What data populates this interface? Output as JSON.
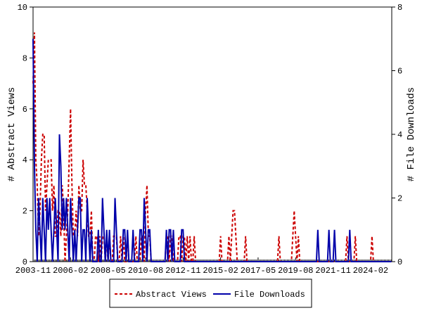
{
  "chart_data": {
    "type": "line",
    "y_label": "# Abstract Views",
    "y2_label": "# File Downloads",
    "categories": [
      "2003-11",
      null,
      null,
      null,
      null,
      null,
      null,
      null,
      null,
      null,
      null,
      null,
      null,
      null,
      null,
      null,
      null,
      null,
      null,
      null,
      null,
      null,
      null,
      null,
      null,
      null,
      null,
      "2006-02",
      null,
      null,
      null,
      null,
      null,
      null,
      null,
      null,
      null,
      null,
      null,
      null,
      null,
      null,
      null,
      null,
      null,
      null,
      null,
      null,
      null,
      null,
      null,
      null,
      null,
      null,
      "2008-05",
      null,
      null,
      null,
      null,
      null,
      null,
      null,
      null,
      null,
      null,
      null,
      null,
      null,
      null,
      null,
      null,
      null,
      null,
      null,
      null,
      null,
      null,
      null,
      null,
      null,
      null,
      "2010-08",
      null,
      null,
      null,
      null,
      null,
      null,
      null,
      null,
      null,
      null,
      null,
      null,
      null,
      null,
      null,
      null,
      null,
      null,
      null,
      null,
      null,
      null,
      null,
      null,
      null,
      null,
      "2012-11",
      null,
      null,
      null,
      null,
      null,
      null,
      null,
      null,
      null,
      null,
      null,
      null,
      null,
      null,
      null,
      null,
      null,
      null,
      null,
      null,
      null,
      null,
      null,
      null,
      null,
      null,
      "2015-02",
      null,
      null,
      null,
      null,
      null,
      null,
      null,
      null,
      null,
      null,
      null,
      null,
      null,
      null,
      null,
      null,
      null,
      null,
      null,
      null,
      null,
      null,
      null,
      null,
      null,
      null,
      "2017-05",
      null,
      null,
      null,
      null,
      null,
      null,
      null,
      null,
      null,
      null,
      null,
      null,
      null,
      null,
      null,
      null,
      null,
      null,
      null,
      null,
      null,
      null,
      null,
      null,
      null,
      null,
      "2019-08",
      null,
      null,
      null,
      null,
      null,
      null,
      null,
      null,
      null,
      null,
      null,
      null,
      null,
      null,
      null,
      null,
      null,
      null,
      null,
      null,
      null,
      null,
      null,
      null,
      null,
      null,
      "2021-11",
      null,
      null,
      null,
      null,
      null,
      null,
      null,
      null,
      null,
      null,
      null,
      null,
      null,
      null,
      null,
      null,
      null,
      null,
      null,
      null,
      null,
      null,
      null,
      null,
      null,
      null,
      "2024-02",
      null,
      null,
      null,
      null,
      null,
      null,
      null,
      null,
      null,
      null,
      null,
      null,
      null,
      null,
      null
    ],
    "series": [
      {
        "name": "Abstract Views",
        "color": "#cc0000",
        "dashed": true,
        "values": [
          7,
          9,
          4,
          3,
          1,
          2,
          4,
          5,
          5,
          2,
          3,
          4,
          4,
          4,
          2,
          3,
          1,
          1,
          2,
          2,
          1,
          3,
          2,
          0,
          1,
          2,
          4,
          6,
          3,
          1,
          1,
          2,
          1,
          3,
          2,
          2,
          4,
          3,
          3,
          2,
          1,
          1,
          2,
          0,
          0,
          1,
          1,
          0,
          1,
          0,
          1,
          1,
          0,
          1,
          0,
          1,
          0,
          0,
          1,
          1,
          1,
          0,
          0,
          1,
          0,
          1,
          0,
          0,
          1,
          0,
          0,
          0,
          0,
          0,
          1,
          0,
          0,
          0,
          1,
          1,
          0,
          2,
          3,
          1,
          1,
          0,
          0,
          0,
          0,
          0,
          0,
          0,
          0,
          0,
          0,
          0,
          1,
          1,
          0,
          1,
          1,
          0,
          0,
          0,
          0,
          1,
          1,
          0,
          1,
          1,
          0,
          1,
          0,
          1,
          0,
          0,
          1,
          0,
          0,
          0,
          0,
          0,
          0,
          0,
          0,
          0,
          0,
          0,
          0,
          0,
          0,
          0,
          0,
          0,
          0,
          1,
          0,
          0,
          0,
          0,
          0,
          1,
          0,
          1,
          2,
          2,
          1,
          0,
          0,
          0,
          0,
          0,
          0,
          1,
          0,
          0,
          0,
          0,
          0,
          0,
          0,
          0,
          0,
          0,
          0,
          0,
          0,
          0,
          0,
          0,
          0,
          0,
          0,
          0,
          0,
          0,
          0,
          1,
          0,
          0,
          0,
          0,
          0,
          0,
          0,
          0,
          0,
          1,
          2,
          1,
          0,
          1,
          0,
          0,
          0,
          0,
          0,
          0,
          0,
          0,
          0,
          0,
          0,
          0,
          0,
          0,
          0,
          0,
          0,
          0,
          0,
          0,
          0,
          0,
          0,
          0,
          0,
          0,
          0,
          0,
          0,
          0,
          0,
          0,
          0,
          0,
          1,
          0,
          0,
          0,
          0,
          0,
          1,
          0,
          0,
          0,
          0,
          0,
          0,
          0,
          0,
          0,
          0,
          0,
          1,
          0,
          0,
          0,
          0,
          0,
          0,
          0,
          0,
          0,
          0,
          0,
          0,
          0,
          0
        ]
      },
      {
        "name": "File Downloads",
        "color": "#0000aa",
        "axis": "y2",
        "values": [
          7,
          3,
          1,
          0,
          2,
          1,
          0,
          2,
          1,
          0,
          2,
          1,
          2,
          1,
          0,
          1,
          2,
          1,
          0,
          4,
          3,
          1,
          2,
          1,
          2,
          1,
          0,
          2,
          1,
          0,
          1,
          0,
          1,
          2,
          2,
          0,
          1,
          1,
          0,
          2,
          1,
          0,
          1,
          0,
          0,
          0,
          0,
          1,
          0,
          0,
          2,
          1,
          0,
          1,
          0,
          1,
          0,
          0,
          0,
          2,
          1,
          0,
          0,
          0,
          0,
          1,
          1,
          0,
          1,
          0,
          0,
          0,
          1,
          0,
          0,
          0,
          0,
          1,
          1,
          0,
          2,
          1,
          0,
          1,
          1,
          0,
          0,
          0,
          0,
          0,
          0,
          0,
          0,
          0,
          0,
          0,
          1,
          0,
          1,
          1,
          0,
          1,
          0,
          0,
          0,
          0,
          0,
          1,
          1,
          0,
          0,
          0,
          0,
          0,
          0,
          0,
          0,
          0,
          0,
          0,
          0,
          0,
          0,
          0,
          0,
          0,
          0,
          0,
          0,
          0,
          0,
          0,
          0,
          0,
          0,
          0,
          0,
          0,
          0,
          0,
          0,
          0,
          0,
          0,
          0,
          0,
          0,
          0,
          0,
          0,
          0,
          0,
          0,
          0,
          0,
          0,
          0,
          0,
          0,
          0,
          0,
          0,
          0,
          0,
          0,
          0,
          0,
          0,
          0,
          0,
          0,
          0,
          0,
          0,
          0,
          0,
          0,
          0,
          0,
          0,
          0,
          0,
          0,
          0,
          0,
          0,
          0,
          0,
          0,
          0,
          0,
          0,
          0,
          0,
          0,
          0,
          0,
          0,
          0,
          0,
          0,
          0,
          0,
          0,
          0,
          1,
          0,
          0,
          0,
          0,
          0,
          0,
          0,
          1,
          0,
          0,
          0,
          1,
          0,
          0,
          0,
          0,
          0,
          0,
          0,
          0,
          0,
          0,
          1,
          0,
          0,
          0,
          0,
          0,
          0,
          0,
          0,
          0,
          0,
          0,
          0,
          0,
          0,
          0,
          0,
          0,
          0,
          0,
          0,
          0,
          0,
          0,
          0,
          0,
          0,
          0,
          0,
          0,
          0
        ]
      }
    ],
    "ylim": [
      0,
      10
    ],
    "yticks": [
      0,
      2,
      4,
      6,
      8,
      10
    ],
    "y2lim": [
      0,
      8
    ],
    "y2ticks": [
      0,
      2,
      4,
      6,
      8
    ],
    "legend": "bottom"
  }
}
